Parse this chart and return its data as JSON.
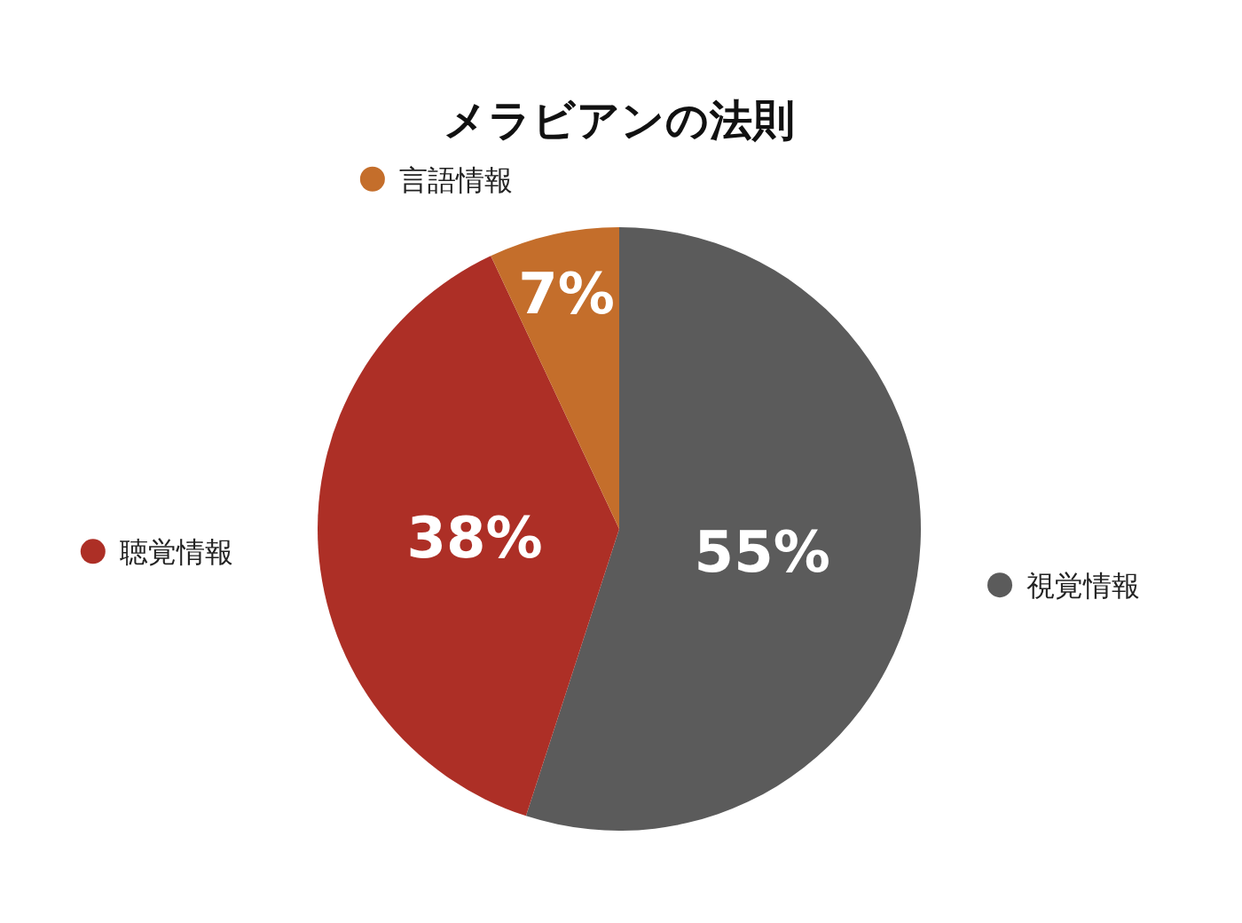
{
  "chart_data": {
    "type": "pie",
    "title": "メラビアンの法則",
    "categories": [
      "視覚情報",
      "聴覚情報",
      "言語情報"
    ],
    "values": [
      55,
      38,
      7
    ],
    "colors": [
      "#5b5b5b",
      "#ad2f26",
      "#c46e2b"
    ],
    "value_labels": [
      "55%",
      "38%",
      "7%"
    ],
    "legend": "right"
  }
}
